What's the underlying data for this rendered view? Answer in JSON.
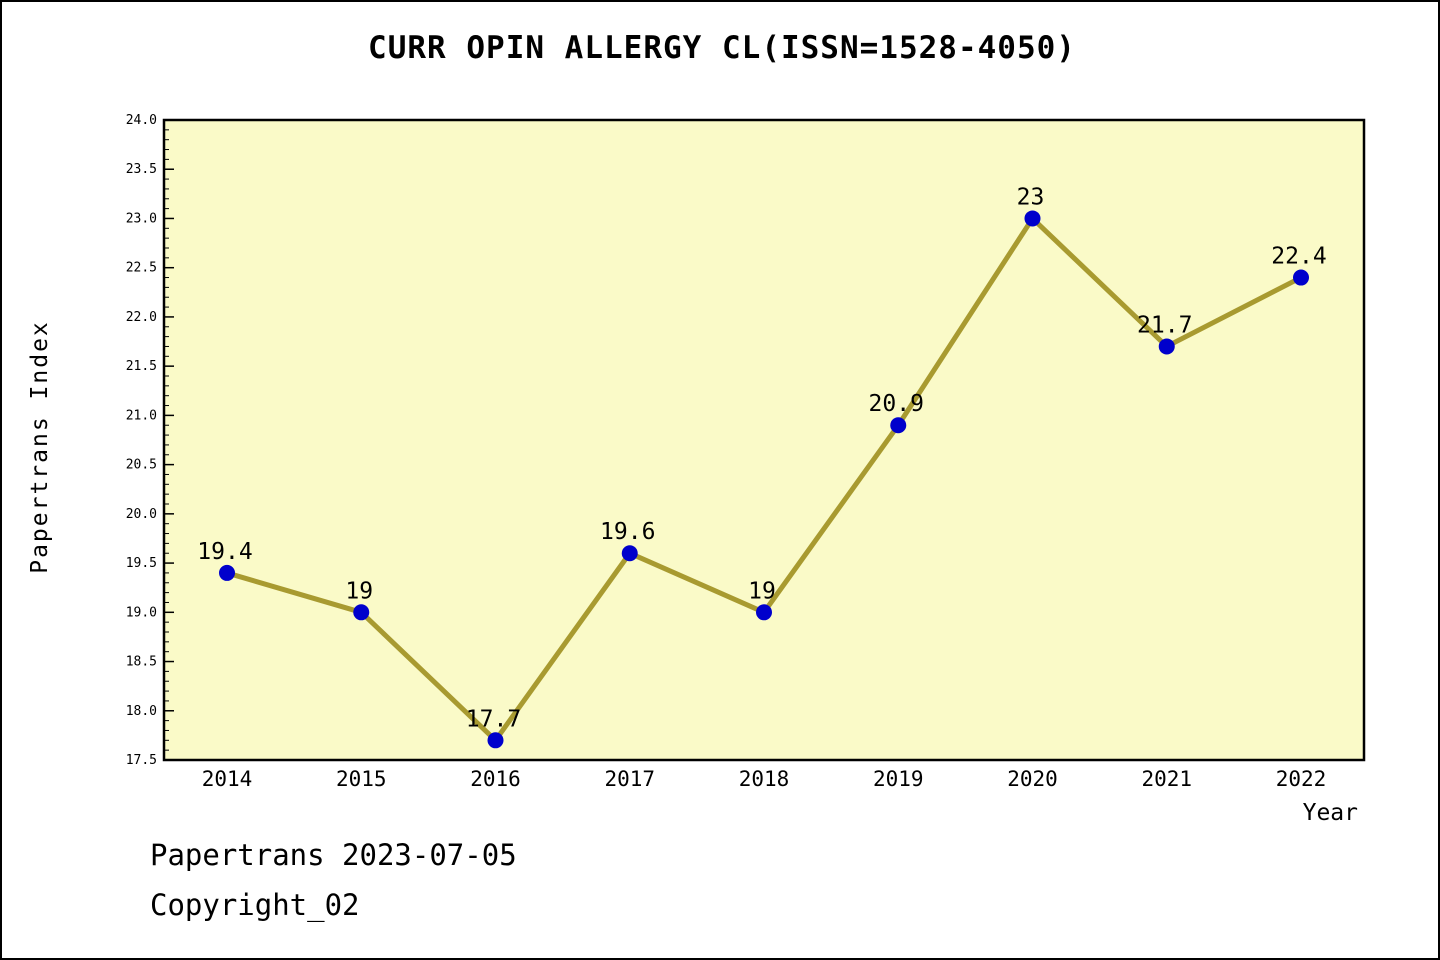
{
  "title": "CURR OPIN ALLERGY CL(ISSN=1528-4050)",
  "footer": {
    "line1": "Papertrans 2023-07-05",
    "line2": "Copyright_02"
  },
  "chart_data": {
    "type": "line",
    "title": "CURR OPIN ALLERGY CL(ISSN=1528-4050)",
    "xlabel": "Year",
    "ylabel": "Papertrans Index",
    "x": [
      2014,
      2015,
      2016,
      2017,
      2018,
      2019,
      2020,
      2021,
      2022
    ],
    "values": [
      19.4,
      19,
      17.7,
      19.6,
      19,
      20.9,
      23,
      21.7,
      22.4
    ],
    "point_labels": [
      "19.4",
      "19",
      "17.7",
      "19.6",
      "19",
      "20.9",
      "23",
      "21.7",
      "22.4"
    ],
    "ylim": [
      17.5,
      24.0
    ],
    "ytick_step": 0.5,
    "yminor_step": 0.1,
    "grid": "off",
    "legend": "none",
    "colors": {
      "line": "#A89A30",
      "marker": "#0000CC",
      "plot_bg": "#FAFAC8",
      "axis": "#000000",
      "text": "#000000"
    }
  }
}
